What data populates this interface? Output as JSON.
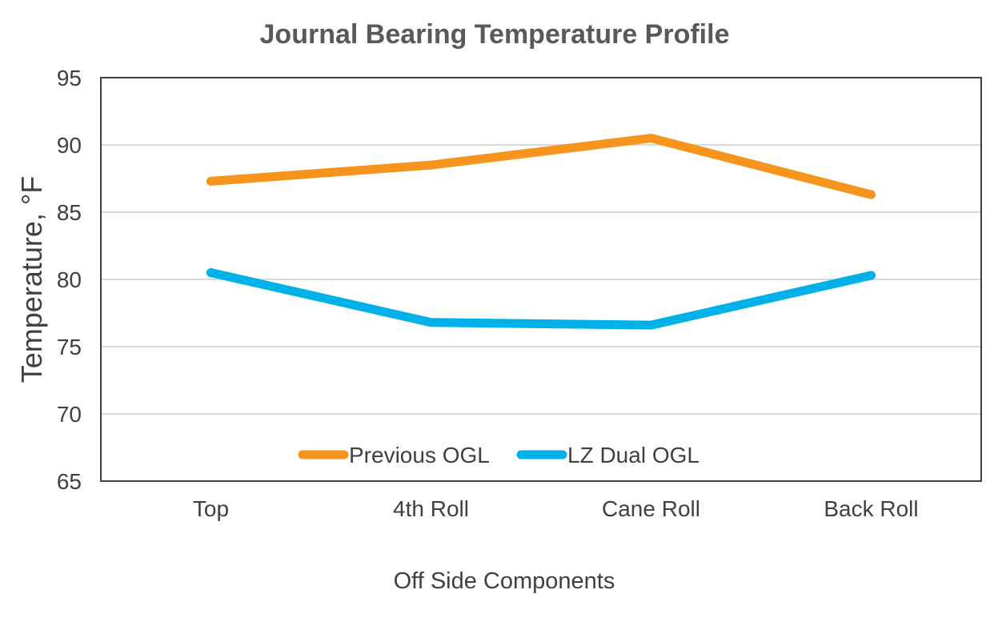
{
  "chart_data": {
    "type": "line",
    "title": "Journal Bearing Temperature Profile",
    "xlabel": "Off Side Components",
    "ylabel": "Temperature, °F",
    "categories": [
      "Top",
      "4th Roll",
      "Cane Roll",
      "Back Roll"
    ],
    "ylim": [
      65,
      95
    ],
    "yticks": [
      65,
      70,
      75,
      80,
      85,
      90,
      95
    ],
    "grid": true,
    "legend_position": "bottom-inside",
    "series": [
      {
        "name": "Previous OGL",
        "color": "#F7941D",
        "values": [
          87.3,
          88.5,
          90.5,
          86.3
        ]
      },
      {
        "name": "LZ Dual OGL",
        "color": "#00B0E8",
        "values": [
          80.5,
          76.8,
          76.6,
          80.3
        ]
      }
    ]
  }
}
